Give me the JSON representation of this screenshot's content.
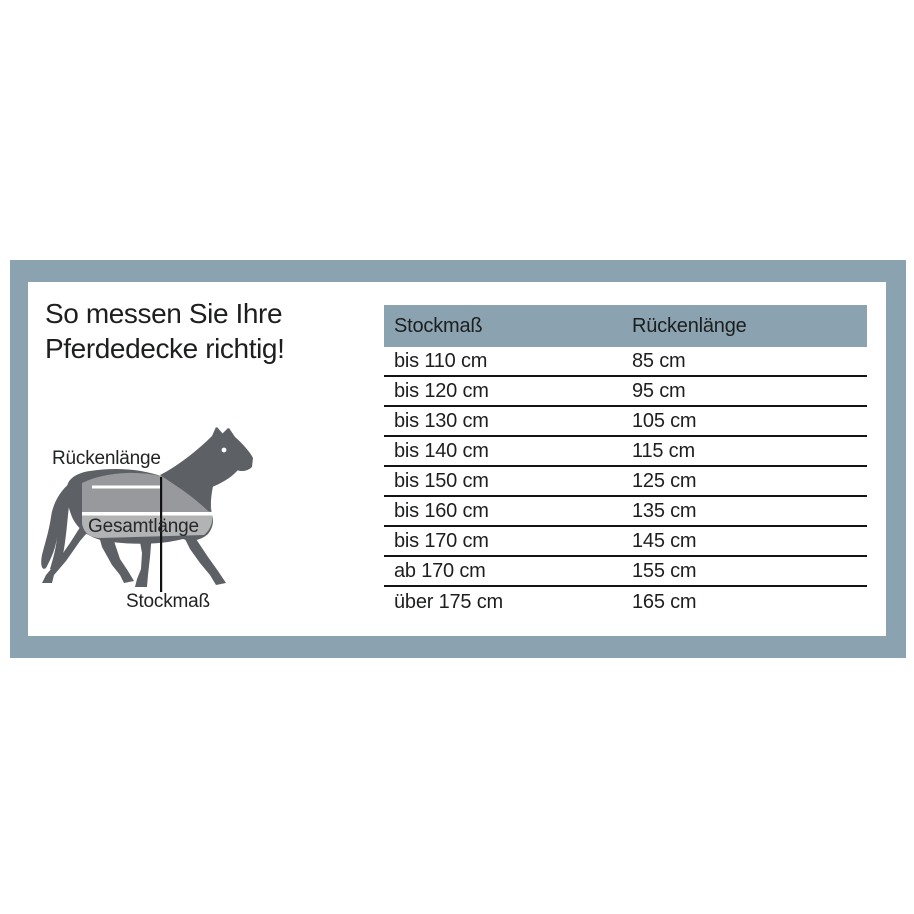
{
  "title": {
    "line1": "So messen Sie Ihre",
    "line2": "Pferdedecke richtig!"
  },
  "diagram": {
    "labels": {
      "back_length": "Rückenlänge",
      "total_length": "Gesamtlänge",
      "stick_measure": "Stockmaß"
    }
  },
  "table": {
    "columns": [
      "Stockmaß",
      "Rückenlänge"
    ],
    "rows": [
      [
        "bis 110 cm",
        "85 cm"
      ],
      [
        "bis 120 cm",
        "95 cm"
      ],
      [
        "bis 130 cm",
        "105 cm"
      ],
      [
        "bis 140 cm",
        "115 cm"
      ],
      [
        "bis 150 cm",
        "125 cm"
      ],
      [
        "bis 160 cm",
        "135 cm"
      ],
      [
        "bis 170 cm",
        "145 cm"
      ],
      [
        "ab 170 cm",
        "155 cm"
      ],
      [
        "über 175 cm",
        "165 cm"
      ]
    ]
  },
  "colors": {
    "frame": "#8BA2B0",
    "text": "#1D1F1E",
    "line": "#141414",
    "horse": "#5D6065",
    "blanket": "#97999C",
    "skirt": "#B1B3B5",
    "measure": "#111111"
  }
}
